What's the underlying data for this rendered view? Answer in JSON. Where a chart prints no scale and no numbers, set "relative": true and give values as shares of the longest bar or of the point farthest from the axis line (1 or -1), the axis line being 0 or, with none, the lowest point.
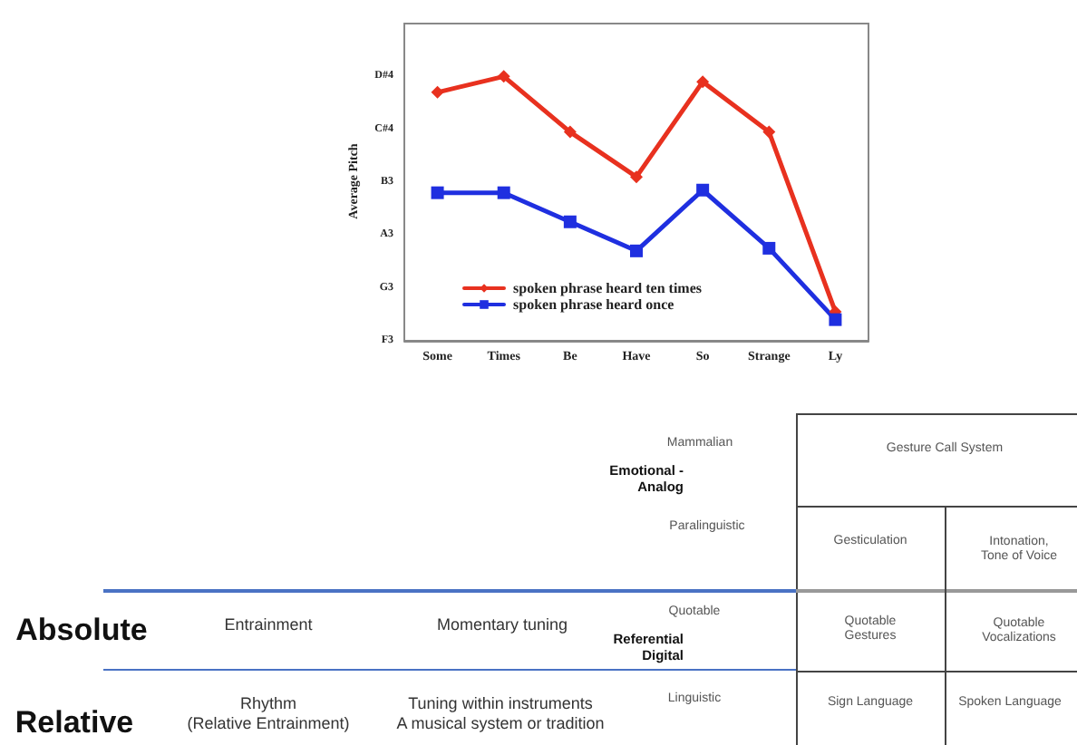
{
  "chart_data": [
    {
      "type": "line",
      "ylabel": "Average Pitch",
      "categories": [
        "Some",
        "Times",
        "Be",
        "Have",
        "So",
        "Strange",
        "Ly"
      ],
      "series": [
        {
          "name": "spoken phrase heard ten times",
          "color": "#e8311f",
          "marker": "diamond",
          "values": [
            0.94,
            1.0,
            0.79,
            0.62,
            0.98,
            0.79,
            0.11
          ]
        },
        {
          "name": "spoken phrase heard once",
          "color": "#1f2fe0",
          "marker": "square",
          "values": [
            0.56,
            0.56,
            0.45,
            0.34,
            0.57,
            0.35,
            0.08
          ]
        }
      ],
      "relative": true,
      "annotations": [
        "F3",
        "G3",
        "A3",
        "B3",
        "C#4",
        "D#4"
      ],
      "grid": false,
      "legend": "bottom left",
      "line_style": "solid"
    },
    {
      "type": "other",
      "annotations": [
        "Mammalian",
        "Emotional -\nAnalog",
        "Gesture Call System",
        "Paralinguistic",
        "Gesticulation",
        "Intonation,\nTone of Voice",
        "Absolute",
        "Entrainment",
        "Momentary tuning",
        "Quotable",
        "Referential\nDigital",
        "Quotable\nGestures",
        "Quotable\nVocalizations",
        "Relative",
        "Rhythm\n(Relative Entrainment)",
        "Tuning within instruments\nA musical system or tradition",
        "Linguistic",
        "Sign Language",
        "Spoken Language"
      ]
    }
  ]
}
